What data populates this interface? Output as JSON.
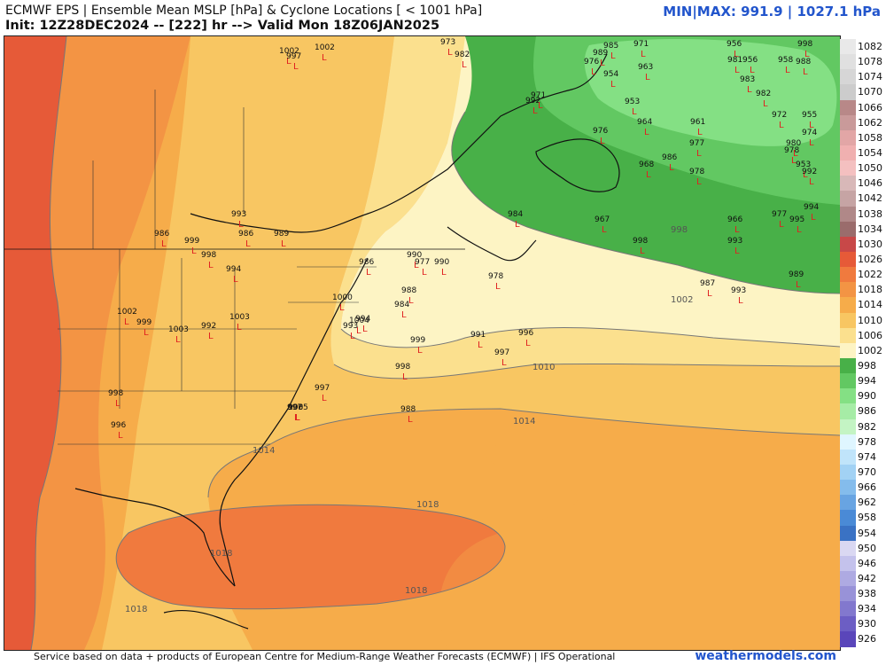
{
  "header": {
    "title": "ECMWF EPS | Ensemble Mean MSLP [hPa] & Cyclone Locations [ < 1001 hPa]",
    "init": "Init: 12Z28DEC2024 -- [222] hr --> Valid Mon 18Z06JAN2025",
    "minmax": "MIN|MAX: 991.9 | 1027.1 hPa"
  },
  "footer": {
    "credit": "Service based on data + products of European Centre for Medium-Range Weather Forecasts (ECMWF) | IFS Operational",
    "brand": "weathermodels.com"
  },
  "colorbar": [
    {
      "label": "1082",
      "color": "#e9e9e9"
    },
    {
      "label": "1078",
      "color": "#e0e0e0"
    },
    {
      "label": "1074",
      "color": "#d6d6d6"
    },
    {
      "label": "1070",
      "color": "#cccccc"
    },
    {
      "label": "1066",
      "color": "#b88888"
    },
    {
      "label": "1062",
      "color": "#c99a9a"
    },
    {
      "label": "1058",
      "color": "#e2a6a6"
    },
    {
      "label": "1054",
      "color": "#f0b0b0"
    },
    {
      "label": "1050",
      "color": "#f4c0c0"
    },
    {
      "label": "1046",
      "color": "#d8b8b8"
    },
    {
      "label": "1042",
      "color": "#c6a4a4"
    },
    {
      "label": "1038",
      "color": "#b08888"
    },
    {
      "label": "1034",
      "color": "#9a6c6c"
    },
    {
      "label": "1030",
      "color": "#c84848"
    },
    {
      "label": "1026",
      "color": "#e65a38"
    },
    {
      "label": "1022",
      "color": "#f07a3e"
    },
    {
      "label": "1018",
      "color": "#f39444"
    },
    {
      "label": "1014",
      "color": "#f6ac4a"
    },
    {
      "label": "1010",
      "color": "#f8c662"
    },
    {
      "label": "1006",
      "color": "#fbe08e"
    },
    {
      "label": "1002",
      "color": "#fdf4c4"
    },
    {
      "label": "998",
      "color": "#48b048"
    },
    {
      "label": "994",
      "color": "#62c862"
    },
    {
      "label": "990",
      "color": "#84e084"
    },
    {
      "label": "986",
      "color": "#a6eca6"
    },
    {
      "label": "982",
      "color": "#c4f4c4"
    },
    {
      "label": "978",
      "color": "#dff6ff"
    },
    {
      "label": "974",
      "color": "#c0e4fa"
    },
    {
      "label": "970",
      "color": "#a2d2f4"
    },
    {
      "label": "966",
      "color": "#84bcec"
    },
    {
      "label": "962",
      "color": "#68a4e2"
    },
    {
      "label": "958",
      "color": "#4a8ad6"
    },
    {
      "label": "954",
      "color": "#3a72c4"
    },
    {
      "label": "950",
      "color": "#dad8f2"
    },
    {
      "label": "946",
      "color": "#c4c2ec"
    },
    {
      "label": "942",
      "color": "#aeaae2"
    },
    {
      "label": "938",
      "color": "#9892d8"
    },
    {
      "label": "934",
      "color": "#8278ce"
    },
    {
      "label": "930",
      "color": "#6c5ec4"
    },
    {
      "label": "926",
      "color": "#5a46ba"
    }
  ],
  "isobar_labels": [
    "998",
    "1002",
    "1010",
    "1014",
    "1014",
    "1018",
    "1018",
    "1018",
    "1018"
  ],
  "cyclones": [
    "1002",
    "997",
    "1002",
    "973",
    "982",
    "985",
    "989",
    "976",
    "971",
    "954",
    "963",
    "956",
    "981",
    "956",
    "958",
    "998",
    "988",
    "983",
    "982",
    "992",
    "971",
    "953",
    "964",
    "961",
    "972",
    "955",
    "977",
    "974",
    "976",
    "980",
    "986",
    "978",
    "968",
    "978",
    "953",
    "992",
    "984",
    "967",
    "998",
    "966",
    "993",
    "977",
    "995",
    "994",
    "993",
    "986",
    "986",
    "999",
    "998",
    "994",
    "989",
    "990",
    "977",
    "990",
    "986",
    "978",
    "988",
    "984",
    "1000",
    "993",
    "994",
    "1004",
    "1002",
    "999",
    "1003",
    "992",
    "1003",
    "999",
    "991",
    "996",
    "997",
    "998",
    "997",
    "1005",
    "988",
    "998",
    "996",
    "997",
    "998",
    "989",
    "987",
    "993"
  ]
}
